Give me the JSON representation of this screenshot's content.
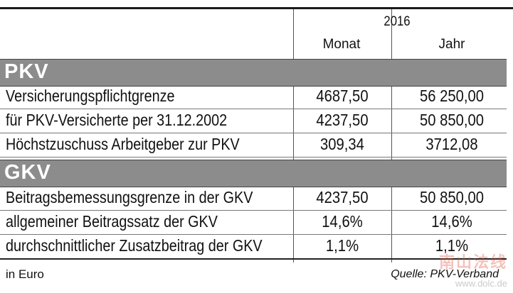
{
  "header": {
    "year": "2016",
    "col_month": "Monat",
    "col_year": "Jahr"
  },
  "sections": [
    {
      "title": "PKV",
      "rows": [
        {
          "label": "Versicherungspflichtgrenze",
          "monat": "4687,50",
          "jahr": "56 250,00"
        },
        {
          "label": "für PKV-Versicherte per 31.12.2002",
          "monat": "4237,50",
          "jahr": "50 850,00"
        },
        {
          "label": "Höchstzuschuss Arbeitgeber zur PKV",
          "monat": "309,34",
          "jahr": "3712,08"
        }
      ]
    },
    {
      "title": "GKV",
      "rows": [
        {
          "label": "Beitragsbemessungsgrenze in der GKV",
          "monat": "4237,50",
          "jahr": "50 850,00"
        },
        {
          "label": "allgemeiner Beitragssatz der GKV",
          "monat": "14,6%",
          "jahr": "14,6%"
        },
        {
          "label": "durchschnittlicher Zusatzbeitrag der GKV",
          "monat": "1,1%",
          "jahr": "1,1%"
        }
      ]
    }
  ],
  "footer": {
    "unit": "in Euro",
    "source": "Quelle: PKV-Verband"
  },
  "watermark": {
    "text": "南山法线",
    "url": "www.dolc.de"
  }
}
